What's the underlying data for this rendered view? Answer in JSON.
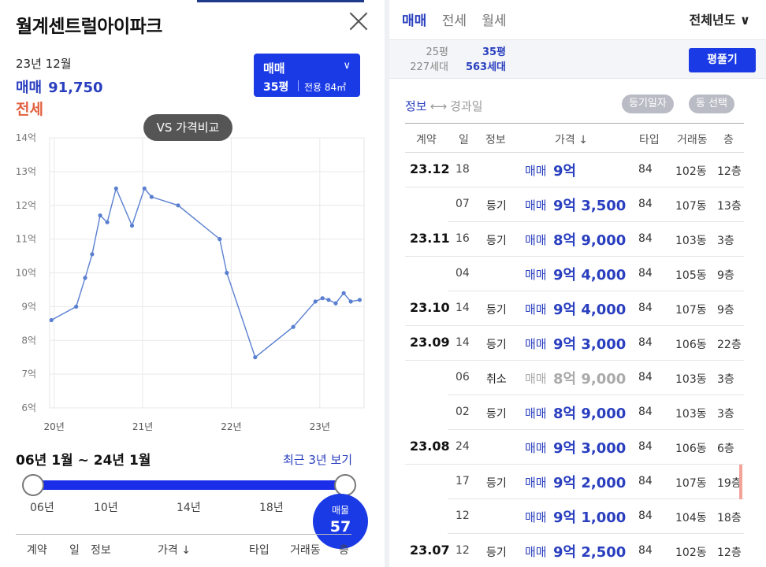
{
  "left": {
    "title": "월계센트럴아이파크",
    "date": "23년 12월",
    "sale_label": "매매",
    "sale_value": "91,750",
    "jeonse_label": "전세",
    "type_selector": {
      "kind": "매매",
      "chevron": "∨",
      "size": "35평",
      "area": "전용 84㎡"
    },
    "vs_button": "VS 가격비교",
    "range_text": "06년 1월 ~ 24년 1월",
    "recent_link": "최근 3년 보기",
    "slider_ticks": [
      "06년",
      "10년",
      "14년",
      "18년"
    ],
    "listing_badge": {
      "label": "매물",
      "count": "57"
    },
    "table_headers": [
      "계약",
      "일",
      "정보",
      "가격 ↓",
      "타입",
      "거래동",
      "층"
    ]
  },
  "chart_data": {
    "type": "line",
    "title": "",
    "xlabel": "",
    "ylabel": "",
    "y_ticks": [
      "14억",
      "13억",
      "12억",
      "11억",
      "10억",
      "9억",
      "8억",
      "7억",
      "6억"
    ],
    "x_ticks": [
      "20년",
      "21년",
      "22년",
      "23년"
    ],
    "ylim": [
      6,
      14
    ],
    "xlim": [
      2019.95,
      2023.5
    ],
    "grid": true,
    "series": [
      {
        "color": "#5a7fd0",
        "points": [
          [
            2019.97,
            8.6
          ],
          [
            2020.25,
            9.0
          ],
          [
            2020.35,
            9.85
          ],
          [
            2020.43,
            10.55
          ],
          [
            2020.52,
            11.7
          ],
          [
            2020.6,
            11.5
          ],
          [
            2020.7,
            12.5
          ],
          [
            2020.88,
            11.4
          ],
          [
            2021.02,
            12.5
          ],
          [
            2021.1,
            12.25
          ],
          [
            2021.4,
            12.0
          ],
          [
            2021.87,
            11.0
          ],
          [
            2021.95,
            10.0
          ],
          [
            2022.27,
            7.5
          ],
          [
            2022.7,
            8.4
          ],
          [
            2022.95,
            9.15
          ],
          [
            2023.03,
            9.25
          ],
          [
            2023.1,
            9.2
          ],
          [
            2023.18,
            9.1
          ],
          [
            2023.27,
            9.4
          ],
          [
            2023.35,
            9.15
          ],
          [
            2023.45,
            9.2
          ]
        ]
      }
    ]
  },
  "right": {
    "tabs": [
      {
        "label": "매매",
        "active": true
      },
      {
        "label": "전세",
        "active": false
      },
      {
        "label": "월세",
        "active": false
      }
    ],
    "year_select": "전체년도 ∨",
    "size_options": [
      {
        "size": "25평",
        "units": "227세대",
        "active": false
      },
      {
        "size": "35평",
        "units": "563세대",
        "active": true
      }
    ],
    "pyeong_button": "평풀기",
    "toggle": {
      "on": "정보",
      "arrow": "⟷",
      "off": "경과일"
    },
    "chips": [
      "등기일자",
      "동 선택"
    ],
    "table_headers": [
      "계약",
      "일",
      "정보",
      "가격 ↓",
      "타입",
      "거래동",
      "층"
    ],
    "rows": [
      {
        "month": "23.12",
        "day": "18",
        "info": "",
        "kind": "매매",
        "price": "9억",
        "type": "84",
        "dong": "102동",
        "floor": "12층",
        "cancelled": false,
        "flag": false
      },
      {
        "month": "",
        "day": "07",
        "info": "등기",
        "kind": "매매",
        "price": "9억 3,500",
        "type": "84",
        "dong": "107동",
        "floor": "13층",
        "cancelled": false,
        "flag": false
      },
      {
        "month": "23.11",
        "day": "16",
        "info": "등기",
        "kind": "매매",
        "price": "8억 9,000",
        "type": "84",
        "dong": "103동",
        "floor": "3층",
        "cancelled": false,
        "flag": false
      },
      {
        "month": "",
        "day": "04",
        "info": "",
        "kind": "매매",
        "price": "9억 4,000",
        "type": "84",
        "dong": "105동",
        "floor": "9층",
        "cancelled": false,
        "flag": false
      },
      {
        "month": "23.10",
        "day": "14",
        "info": "등기",
        "kind": "매매",
        "price": "9억 4,000",
        "type": "84",
        "dong": "107동",
        "floor": "9층",
        "cancelled": false,
        "flag": false
      },
      {
        "month": "23.09",
        "day": "14",
        "info": "등기",
        "kind": "매매",
        "price": "9억 3,000",
        "type": "84",
        "dong": "106동",
        "floor": "22층",
        "cancelled": false,
        "flag": false
      },
      {
        "month": "",
        "day": "06",
        "info": "취소",
        "kind": "매매",
        "price": "8억 9,000",
        "type": "84",
        "dong": "103동",
        "floor": "3층",
        "cancelled": true,
        "flag": false
      },
      {
        "month": "",
        "day": "02",
        "info": "등기",
        "kind": "매매",
        "price": "8억 9,000",
        "type": "84",
        "dong": "103동",
        "floor": "3층",
        "cancelled": false,
        "flag": false
      },
      {
        "month": "23.08",
        "day": "24",
        "info": "",
        "kind": "매매",
        "price": "9억 3,000",
        "type": "84",
        "dong": "106동",
        "floor": "6층",
        "cancelled": false,
        "flag": false
      },
      {
        "month": "",
        "day": "17",
        "info": "등기",
        "kind": "매매",
        "price": "9억 2,000",
        "type": "84",
        "dong": "107동",
        "floor": "19층",
        "cancelled": false,
        "flag": true
      },
      {
        "month": "",
        "day": "12",
        "info": "",
        "kind": "매매",
        "price": "9억 1,000",
        "type": "84",
        "dong": "104동",
        "floor": "18층",
        "cancelled": false,
        "flag": false
      },
      {
        "month": "23.07",
        "day": "12",
        "info": "등기",
        "kind": "매매",
        "price": "9억 2,500",
        "type": "84",
        "dong": "102동",
        "floor": "12층",
        "cancelled": false,
        "flag": false
      }
    ]
  }
}
